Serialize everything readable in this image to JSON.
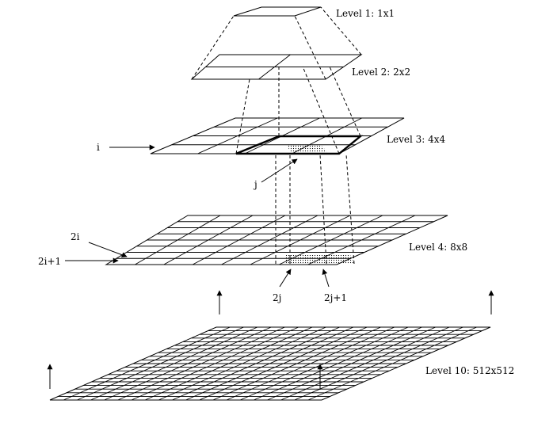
{
  "levels": [
    {
      "id": "level1",
      "label": "Level 1: 1x1",
      "n": 1
    },
    {
      "id": "level2",
      "label": "Level 2: 2x2",
      "n": 2
    },
    {
      "id": "level3",
      "label": "Level 3: 4x4",
      "n": 4
    },
    {
      "id": "level4",
      "label": "Level 4: 8x8",
      "n": 8
    },
    {
      "id": "level10",
      "label": "Level 10: 512x512",
      "n": 20
    }
  ],
  "annotations": {
    "i": "i",
    "j": "j",
    "two_i": "2i",
    "two_i_plus_1": "2i+1",
    "two_j": "2j",
    "two_j_plus_1": "2j+1"
  },
  "colors": {
    "ink": "#000000",
    "background": "#ffffff"
  }
}
